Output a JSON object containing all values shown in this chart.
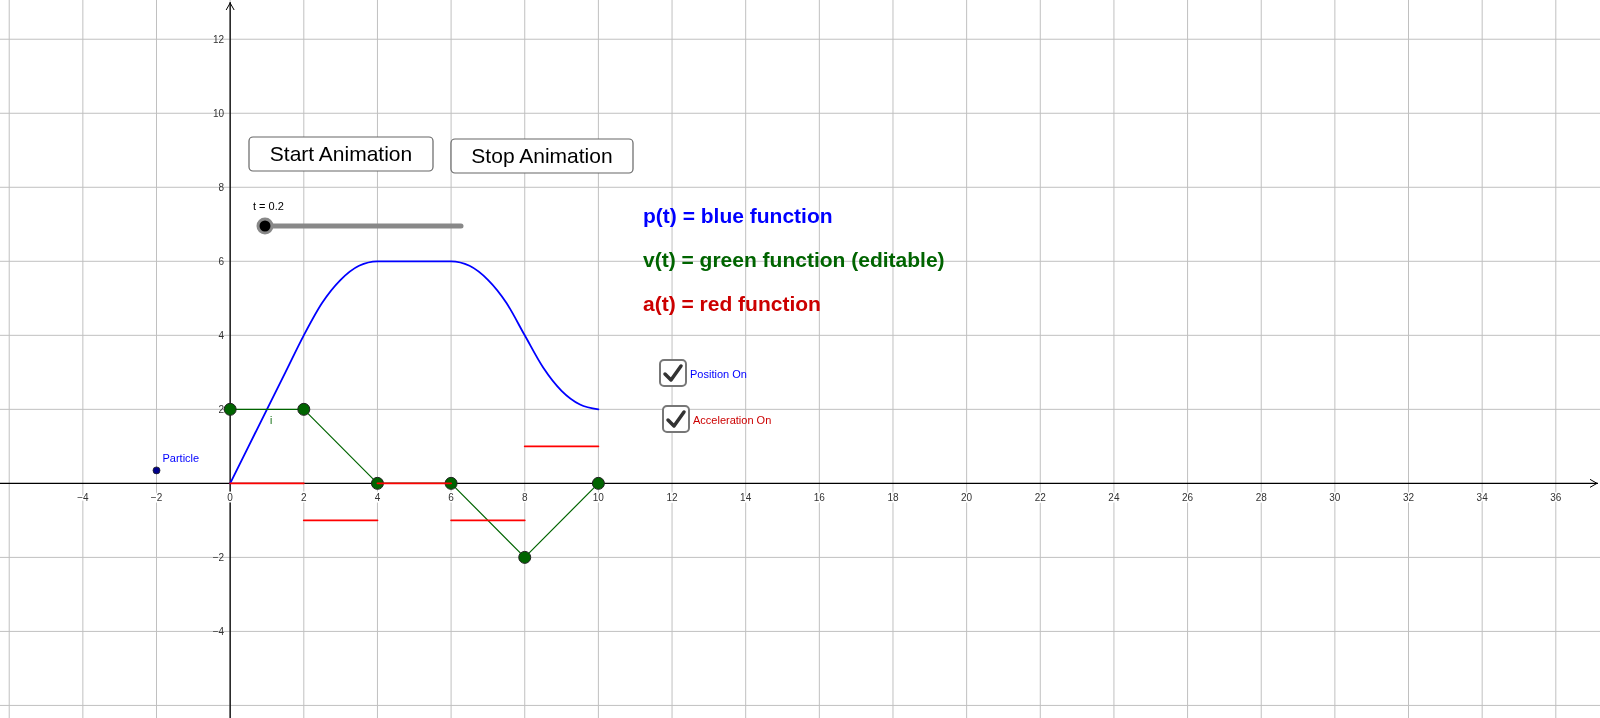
{
  "chart_data": {
    "type": "line",
    "xlim": [
      -6.25,
      37.2
    ],
    "ylim": [
      -6.34,
      13.06
    ],
    "xticks": [
      {
        "value": -6,
        "label": null
      },
      {
        "value": -4,
        "label": "−4"
      },
      {
        "value": -2,
        "label": "−2"
      },
      0,
      2,
      4,
      6,
      8,
      10,
      12,
      14,
      16,
      18,
      20,
      22,
      24,
      26,
      28,
      30,
      32,
      34,
      36
    ],
    "yticks": [
      {
        "value": -6,
        "label": null
      },
      {
        "value": -4,
        "label": "−4"
      },
      {
        "value": -2,
        "label": "−2"
      },
      2,
      4,
      6,
      8,
      10,
      12
    ],
    "grid": true,
    "series": [
      {
        "color": "#0000ff",
        "marker": "none",
        "x": [
          0,
          0.5,
          1,
          1.5,
          2,
          2.5,
          3,
          3.5,
          4,
          4.5,
          5,
          5.5,
          6,
          6.5,
          7,
          7.5,
          8,
          8.5,
          9,
          9.5,
          10
        ],
        "values": [
          0,
          1,
          2,
          3,
          4,
          4.88,
          5.5,
          5.88,
          6,
          6,
          6,
          6,
          6,
          5.88,
          5.5,
          4.88,
          4,
          3.13,
          2.5,
          2.13,
          2
        ]
      },
      {
        "color": "#006400",
        "marker": "circle",
        "x": [
          0,
          2,
          4,
          6,
          8,
          10
        ],
        "values": [
          2,
          2,
          0,
          0,
          -2,
          0
        ]
      },
      {
        "color": "#ff0000",
        "marker": "none",
        "x": [
          0,
          2
        ],
        "values": [
          0,
          0
        ]
      },
      {
        "color": "#ff0000",
        "marker": "none",
        "x": [
          2,
          4
        ],
        "values": [
          -1,
          -1
        ]
      },
      {
        "color": "#ff0000",
        "marker": "none",
        "x": [
          4,
          6
        ],
        "values": [
          0,
          0
        ]
      },
      {
        "color": "#ff0000",
        "marker": "none",
        "x": [
          6,
          8
        ],
        "values": [
          -1,
          -1
        ]
      },
      {
        "color": "#ff0000",
        "marker": "none",
        "x": [
          8,
          10
        ],
        "values": [
          1,
          1
        ]
      },
      {
        "type": "scatter",
        "name": "Particle",
        "color": "#00008b",
        "marker": "circle",
        "x": [
          -2
        ],
        "values": [
          0.35
        ]
      }
    ],
    "annotations": [
      "Start Animation",
      "Stop Animation",
      "t = 0.2",
      "p(t) = blue function",
      "v(t) = green function (editable)",
      "a(t) = red function",
      "Position On",
      "Acceleration On",
      {
        "text": "i",
        "x": 1,
        "y": 2
      }
    ]
  }
}
